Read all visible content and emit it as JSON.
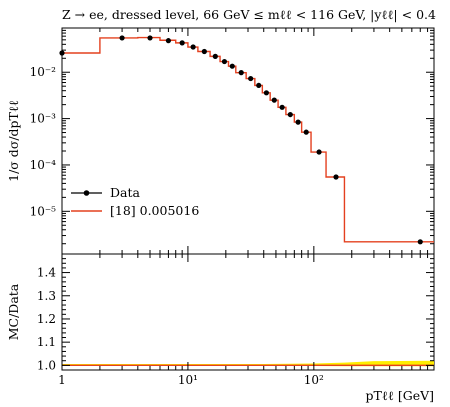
{
  "chart_data": [
    {
      "type": "line",
      "title": "Z → ee, dressed level, 66 GeV ≤ mℓℓ < 116 GeV, |yℓℓ| < 0.4",
      "ylabel": "1/σ dσ/dpTℓℓ",
      "xscale": "log",
      "yscale": "log",
      "xlim": [
        1,
        900
      ],
      "ylim": [
        1.2e-06,
        0.09
      ],
      "x_ticks": [
        {
          "v": 1,
          "label": "1"
        },
        {
          "v": 10,
          "label": "10"
        },
        {
          "v": 100,
          "label": "10²"
        }
      ],
      "y_ticks": [
        {
          "v": 0.01,
          "label": "10⁻²"
        },
        {
          "v": 0.001,
          "label": "10⁻³"
        },
        {
          "v": 0.0001,
          "label": "10⁻⁴"
        },
        {
          "v": 1e-05,
          "label": "10⁻⁵"
        }
      ],
      "legend": {
        "placement": "bottom-left"
      },
      "series": [
        {
          "name": "Data",
          "style": "points",
          "color": "#000000",
          "points": [
            [
              1,
              0.026
            ],
            [
              3,
              0.055
            ],
            [
              5,
              0.055
            ],
            [
              7,
              0.048
            ],
            [
              9,
              0.043
            ],
            [
              11,
              0.035
            ],
            [
              13.5,
              0.028
            ],
            [
              16.5,
              0.022
            ],
            [
              19.5,
              0.017
            ],
            [
              22.5,
              0.0135
            ],
            [
              26.5,
              0.0098
            ],
            [
              31.5,
              0.0073
            ],
            [
              36.5,
              0.0052
            ],
            [
              42,
              0.0036
            ],
            [
              48.5,
              0.0025
            ],
            [
              56,
              0.00175
            ],
            [
              65,
              0.00122
            ],
            [
              75,
              0.00084
            ],
            [
              87,
              0.00051
            ],
            [
              110,
              0.00019
            ],
            [
              150,
              5.5e-05
            ],
            [
              700,
              2.2e-06
            ]
          ]
        },
        {
          "name": "[18] 0.005016",
          "style": "step",
          "color": "#e4401f",
          "edges": [
            0.95,
            2,
            4,
            6,
            8,
            10,
            12,
            15,
            18,
            21,
            24,
            29,
            34,
            39,
            45,
            52,
            60,
            70,
            80,
            95,
            125,
            175,
            900
          ],
          "values": [
            0.026,
            0.055,
            0.056,
            0.049,
            0.043,
            0.035,
            0.028,
            0.022,
            0.017,
            0.0135,
            0.0098,
            0.0073,
            0.0052,
            0.0036,
            0.0025,
            0.00175,
            0.00122,
            0.00084,
            0.00051,
            0.00019,
            5.5e-05,
            2.2e-06
          ]
        }
      ]
    },
    {
      "type": "line",
      "ylabel": "MC/Data",
      "xlabel": "pTℓℓ [GeV]",
      "xscale": "log",
      "xlim": [
        1,
        900
      ],
      "ylim": [
        0.98,
        1.48
      ],
      "x_ticks": [
        {
          "v": 1,
          "label": "1"
        },
        {
          "v": 10,
          "label": "10¹"
        },
        {
          "v": 100,
          "label": "10²"
        }
      ],
      "y_ticks": [
        {
          "v": 1.0,
          "label": "1.0"
        },
        {
          "v": 1.1,
          "label": "1.1"
        },
        {
          "v": 1.2,
          "label": "1.2"
        },
        {
          "v": 1.3,
          "label": "1.3"
        },
        {
          "v": 1.4,
          "label": "1.4"
        }
      ],
      "series": [
        {
          "name": "ratio",
          "style": "step",
          "color": "#e4401f",
          "edges": [
            1,
            900
          ],
          "values": [
            1.0
          ]
        }
      ],
      "uncertainty_band": {
        "color": "#ffee00",
        "x": [
          1,
          40,
          100,
          175,
          300,
          900
        ],
        "low": [
          0.999,
          0.998,
          0.997,
          0.996,
          0.996,
          0.996
        ],
        "high": [
          1.006,
          1.006,
          1.008,
          1.012,
          1.018,
          1.02
        ]
      }
    }
  ]
}
